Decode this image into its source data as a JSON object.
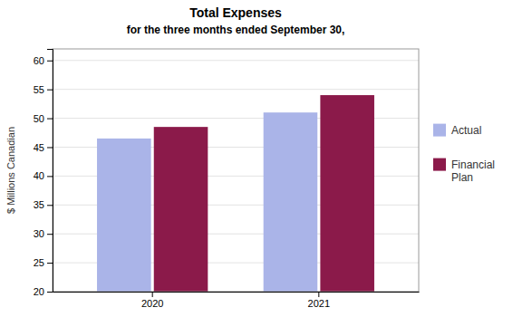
{
  "chart_data": {
    "type": "bar",
    "title": "Total Expenses",
    "subtitle": "for the three months ended September 30,",
    "categories": [
      "2020",
      "2021"
    ],
    "series": [
      {
        "name": "Actual",
        "color": "#aab4e8",
        "values": [
          46.5,
          51.0
        ]
      },
      {
        "name": "Financial\nPlan",
        "color": "#8b1a4a",
        "values": [
          48.5,
          54.0
        ]
      }
    ],
    "y_label": "$ Millions Canadian",
    "ylim": [
      20,
      62
    ],
    "yticks": [
      20,
      25,
      30,
      35,
      40,
      45,
      50,
      55,
      60
    ],
    "grid": true,
    "legend": "right"
  }
}
